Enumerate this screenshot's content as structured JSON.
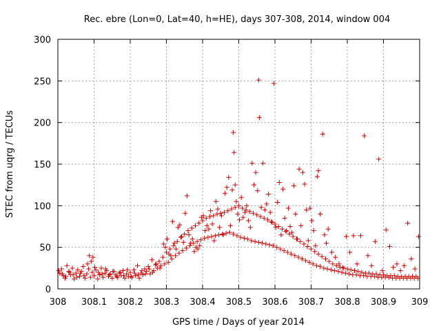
{
  "chart_data": {
    "type": "scatter",
    "title": "Rec. ebre (Lon=0, Lat=40, h=HE), days 307-308, 2014, window 004",
    "xlabel": "GPS time / Days of year 2014",
    "ylabel": "STEC from uqrg / TECUs",
    "xlim": [
      308,
      309
    ],
    "ylim": [
      0,
      300
    ],
    "xticks": [
      "308",
      "308.1",
      "308.2",
      "308.3",
      "308.4",
      "308.5",
      "308.6",
      "308.7",
      "308.8",
      "308.9",
      "309"
    ],
    "yticks": [
      "0",
      "50",
      "100",
      "150",
      "200",
      "250",
      "300"
    ],
    "grid": true,
    "marker": "plus",
    "color": "#cc0000",
    "points": [
      [
        308.005,
        19
      ],
      [
        308.01,
        24
      ],
      [
        308.015,
        16
      ],
      [
        308.02,
        13
      ],
      [
        308.025,
        28
      ],
      [
        308.03,
        21
      ],
      [
        308.035,
        17
      ],
      [
        308.04,
        25
      ],
      [
        308.045,
        12
      ],
      [
        308.05,
        19
      ],
      [
        308.055,
        23
      ],
      [
        308.06,
        15
      ],
      [
        308.065,
        21
      ],
      [
        308.07,
        27
      ],
      [
        308.075,
        13
      ],
      [
        308.08,
        18
      ],
      [
        308.085,
        24
      ],
      [
        308.09,
        14
      ],
      [
        308.095,
        20
      ],
      [
        308.1,
        16
      ],
      [
        308.105,
        23
      ],
      [
        308.11,
        12
      ],
      [
        308.115,
        17
      ],
      [
        308.12,
        25
      ],
      [
        308.125,
        14
      ],
      [
        308.13,
        19
      ],
      [
        308.135,
        22
      ],
      [
        308.14,
        15
      ],
      [
        308.145,
        18
      ],
      [
        308.15,
        13
      ],
      [
        308.155,
        21
      ],
      [
        308.16,
        17
      ],
      [
        308.165,
        14
      ],
      [
        308.17,
        19
      ],
      [
        308.175,
        16
      ],
      [
        308.18,
        22
      ],
      [
        308.185,
        13
      ],
      [
        308.19,
        18
      ],
      [
        308.195,
        15
      ],
      [
        308.2,
        20
      ],
      [
        308.205,
        14
      ],
      [
        308.21,
        23
      ],
      [
        308.215,
        16
      ],
      [
        308.22,
        28
      ],
      [
        308.225,
        13
      ],
      [
        308.23,
        19
      ],
      [
        308.235,
        17
      ],
      [
        308.24,
        24
      ],
      [
        308.245,
        21
      ],
      [
        308.25,
        27
      ],
      [
        308.255,
        18
      ],
      [
        308.26,
        35
      ],
      [
        308.265,
        22
      ],
      [
        308.27,
        29
      ],
      [
        308.275,
        25
      ],
      [
        308.28,
        33
      ],
      [
        308.285,
        28
      ],
      [
        308.29,
        38
      ],
      [
        308.295,
        30
      ],
      [
        308.3,
        44
      ],
      [
        308.305,
        32
      ],
      [
        308.31,
        48
      ],
      [
        308.315,
        36
      ],
      [
        308.32,
        52
      ],
      [
        308.325,
        40
      ],
      [
        308.33,
        57
      ],
      [
        308.335,
        43
      ],
      [
        308.34,
        62
      ],
      [
        308.345,
        46
      ],
      [
        308.35,
        66
      ],
      [
        308.355,
        49
      ],
      [
        308.36,
        70
      ],
      [
        308.365,
        52
      ],
      [
        308.37,
        73
      ],
      [
        308.375,
        55
      ],
      [
        308.38,
        76
      ],
      [
        308.385,
        57
      ],
      [
        308.39,
        79
      ],
      [
        308.395,
        59
      ],
      [
        308.4,
        82
      ],
      [
        308.405,
        61
      ],
      [
        308.41,
        85
      ],
      [
        308.415,
        62
      ],
      [
        308.42,
        87
      ],
      [
        308.425,
        63
      ],
      [
        308.43,
        88
      ],
      [
        308.435,
        64
      ],
      [
        308.44,
        90
      ],
      [
        308.445,
        65
      ],
      [
        308.45,
        91
      ],
      [
        308.455,
        66
      ],
      [
        308.46,
        92
      ],
      [
        308.465,
        67
      ],
      [
        308.47,
        94
      ],
      [
        308.475,
        68
      ],
      [
        308.48,
        96
      ],
      [
        308.485,
        66
      ],
      [
        308.49,
        98
      ],
      [
        308.495,
        64
      ],
      [
        308.5,
        100
      ],
      [
        308.505,
        62
      ],
      [
        308.51,
        97
      ],
      [
        308.515,
        61
      ],
      [
        308.52,
        95
      ],
      [
        308.525,
        60
      ],
      [
        308.53,
        93
      ],
      [
        308.535,
        58
      ],
      [
        308.54,
        91
      ],
      [
        308.545,
        57
      ],
      [
        308.55,
        89
      ],
      [
        308.555,
        56
      ],
      [
        308.56,
        87
      ],
      [
        308.565,
        55
      ],
      [
        308.57,
        85
      ],
      [
        308.575,
        54
      ],
      [
        308.58,
        83
      ],
      [
        308.585,
        53
      ],
      [
        308.59,
        81
      ],
      [
        308.595,
        52
      ],
      [
        308.6,
        78
      ],
      [
        308.605,
        50
      ],
      [
        308.61,
        75
      ],
      [
        308.615,
        48
      ],
      [
        308.62,
        72
      ],
      [
        308.625,
        46
      ],
      [
        308.63,
        69
      ],
      [
        308.635,
        44
      ],
      [
        308.64,
        66
      ],
      [
        308.645,
        42
      ],
      [
        308.65,
        63
      ],
      [
        308.655,
        40
      ],
      [
        308.66,
        60
      ],
      [
        308.665,
        38
      ],
      [
        308.67,
        57
      ],
      [
        308.675,
        36
      ],
      [
        308.68,
        54
      ],
      [
        308.685,
        34
      ],
      [
        308.69,
        51
      ],
      [
        308.695,
        32
      ],
      [
        308.7,
        48
      ],
      [
        308.705,
        30
      ],
      [
        308.71,
        45
      ],
      [
        308.715,
        28
      ],
      [
        308.72,
        42
      ],
      [
        308.725,
        27
      ],
      [
        308.73,
        39
      ],
      [
        308.735,
        25
      ],
      [
        308.74,
        36
      ],
      [
        308.745,
        24
      ],
      [
        308.75,
        33
      ],
      [
        308.755,
        23
      ],
      [
        308.76,
        30
      ],
      [
        308.765,
        22
      ],
      [
        308.77,
        28
      ],
      [
        308.775,
        21
      ],
      [
        308.78,
        26
      ],
      [
        308.785,
        20
      ],
      [
        308.79,
        25
      ],
      [
        308.795,
        19
      ],
      [
        308.8,
        24
      ],
      [
        308.805,
        18
      ],
      [
        308.81,
        23
      ],
      [
        308.815,
        17
      ],
      [
        308.82,
        22
      ],
      [
        308.825,
        17
      ],
      [
        308.83,
        21
      ],
      [
        308.835,
        16
      ],
      [
        308.84,
        20
      ],
      [
        308.845,
        16
      ],
      [
        308.85,
        19
      ],
      [
        308.855,
        15
      ],
      [
        308.86,
        19
      ],
      [
        308.865,
        15
      ],
      [
        308.87,
        18
      ],
      [
        308.875,
        15
      ],
      [
        308.88,
        18
      ],
      [
        308.885,
        14
      ],
      [
        308.89,
        17
      ],
      [
        308.895,
        14
      ],
      [
        308.9,
        17
      ],
      [
        308.905,
        14
      ],
      [
        308.91,
        16
      ],
      [
        308.915,
        14
      ],
      [
        308.92,
        16
      ],
      [
        308.925,
        13
      ],
      [
        308.93,
        16
      ],
      [
        308.935,
        13
      ],
      [
        308.94,
        15
      ],
      [
        308.945,
        13
      ],
      [
        308.95,
        15
      ],
      [
        308.955,
        13
      ],
      [
        308.96,
        15
      ],
      [
        308.965,
        13
      ],
      [
        308.97,
        15
      ],
      [
        308.975,
        13
      ],
      [
        308.98,
        15
      ],
      [
        308.985,
        13
      ],
      [
        308.99,
        15
      ],
      [
        308.995,
        13
      ],
      [
        308.002,
        22
      ],
      [
        308.012,
        18
      ],
      [
        308.022,
        15
      ],
      [
        308.032,
        20
      ],
      [
        308.042,
        17
      ],
      [
        308.052,
        14
      ],
      [
        308.062,
        19
      ],
      [
        308.072,
        16
      ],
      [
        308.082,
        30
      ],
      [
        308.087,
        40
      ],
      [
        308.092,
        33
      ],
      [
        308.097,
        38
      ],
      [
        308.102,
        26
      ],
      [
        308.112,
        20
      ],
      [
        308.122,
        18
      ],
      [
        308.132,
        24
      ],
      [
        308.142,
        17
      ],
      [
        308.152,
        21
      ],
      [
        308.162,
        15
      ],
      [
        308.172,
        20
      ],
      [
        308.182,
        16
      ],
      [
        308.192,
        23
      ],
      [
        308.202,
        15
      ],
      [
        308.212,
        19
      ],
      [
        308.222,
        17
      ],
      [
        308.232,
        22
      ],
      [
        308.242,
        18
      ],
      [
        308.252,
        24
      ],
      [
        308.262,
        20
      ],
      [
        308.272,
        30
      ],
      [
        308.282,
        25
      ],
      [
        308.292,
        54
      ],
      [
        308.297,
        50
      ],
      [
        308.302,
        60
      ],
      [
        308.307,
        42
      ],
      [
        308.312,
        40
      ],
      [
        308.317,
        81
      ],
      [
        308.322,
        55
      ],
      [
        308.327,
        48
      ],
      [
        308.332,
        74
      ],
      [
        308.337,
        77
      ],
      [
        308.342,
        63
      ],
      [
        308.347,
        56
      ],
      [
        308.352,
        91
      ],
      [
        308.357,
        112
      ],
      [
        308.362,
        65
      ],
      [
        308.367,
        55
      ],
      [
        308.372,
        60
      ],
      [
        308.377,
        45
      ],
      [
        308.382,
        50
      ],
      [
        308.387,
        48
      ],
      [
        308.392,
        52
      ],
      [
        308.397,
        86
      ],
      [
        308.402,
        88
      ],
      [
        308.407,
        70
      ],
      [
        308.412,
        76
      ],
      [
        308.417,
        72
      ],
      [
        308.422,
        94
      ],
      [
        308.427,
        78
      ],
      [
        308.432,
        58
      ],
      [
        308.437,
        105
      ],
      [
        308.442,
        96
      ],
      [
        308.447,
        74
      ],
      [
        308.452,
        88
      ],
      [
        308.457,
        65
      ],
      [
        308.462,
        115
      ],
      [
        308.467,
        122
      ],
      [
        308.472,
        134
      ],
      [
        308.477,
        76
      ],
      [
        308.482,
        119
      ],
      [
        308.485,
        188
      ],
      [
        308.487,
        164
      ],
      [
        308.49,
        125
      ],
      [
        308.493,
        105
      ],
      [
        308.497,
        90
      ],
      [
        308.502,
        83
      ],
      [
        308.507,
        110
      ],
      [
        308.512,
        86
      ],
      [
        308.517,
        92
      ],
      [
        308.522,
        100
      ],
      [
        308.527,
        82
      ],
      [
        308.532,
        74
      ],
      [
        308.537,
        151
      ],
      [
        308.542,
        125
      ],
      [
        308.547,
        140
      ],
      [
        308.552,
        118
      ],
      [
        308.555,
        251
      ],
      [
        308.557,
        206
      ],
      [
        308.562,
        98
      ],
      [
        308.567,
        151
      ],
      [
        308.572,
        95
      ],
      [
        308.577,
        102
      ],
      [
        308.582,
        114
      ],
      [
        308.587,
        92
      ],
      [
        308.592,
        80
      ],
      [
        308.597,
        247
      ],
      [
        308.602,
        74
      ],
      [
        308.607,
        104
      ],
      [
        308.612,
        128
      ],
      [
        308.617,
        65
      ],
      [
        308.622,
        120
      ],
      [
        308.627,
        85
      ],
      [
        308.632,
        70
      ],
      [
        308.637,
        97
      ],
      [
        308.642,
        75
      ],
      [
        308.647,
        68
      ],
      [
        308.652,
        124
      ],
      [
        308.657,
        90
      ],
      [
        308.662,
        60
      ],
      [
        308.667,
        144
      ],
      [
        308.672,
        76
      ],
      [
        308.677,
        140
      ],
      [
        308.682,
        126
      ],
      [
        308.687,
        95
      ],
      [
        308.692,
        58
      ],
      [
        308.697,
        97
      ],
      [
        308.702,
        82
      ],
      [
        308.707,
        70
      ],
      [
        308.712,
        52
      ],
      [
        308.717,
        135
      ],
      [
        308.72,
        142
      ],
      [
        308.725,
        90
      ],
      [
        308.732,
        186
      ],
      [
        308.737,
        65
      ],
      [
        308.742,
        55
      ],
      [
        308.747,
        72
      ],
      [
        308.757,
        44
      ],
      [
        308.767,
        38
      ],
      [
        308.777,
        30
      ],
      [
        308.787,
        26
      ],
      [
        308.797,
        63
      ],
      [
        308.807,
        44
      ],
      [
        308.817,
        64
      ],
      [
        308.827,
        30
      ],
      [
        308.837,
        64
      ],
      [
        308.847,
        184
      ],
      [
        308.857,
        40
      ],
      [
        308.867,
        28
      ],
      [
        308.877,
        57
      ],
      [
        308.887,
        156
      ],
      [
        308.897,
        22
      ],
      [
        308.907,
        71
      ],
      [
        308.917,
        51
      ],
      [
        308.927,
        26
      ],
      [
        308.937,
        30
      ],
      [
        308.947,
        22
      ],
      [
        308.957,
        28
      ],
      [
        308.967,
        79
      ],
      [
        308.977,
        36
      ],
      [
        308.987,
        24
      ],
      [
        308.997,
        63
      ]
    ]
  }
}
